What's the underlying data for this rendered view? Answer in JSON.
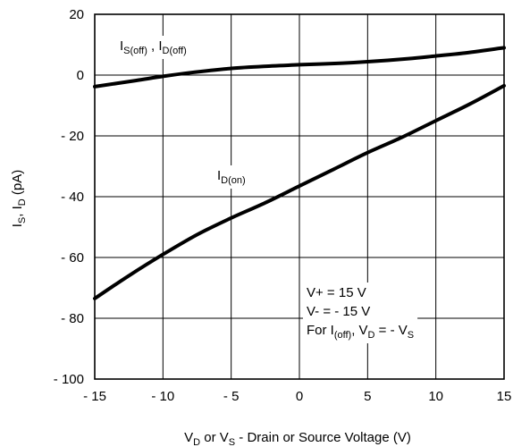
{
  "chart_data": {
    "type": "line",
    "xlabel": {
      "main": "V",
      "s1": "D",
      "mid": " or V",
      "s2": "S",
      "rest": " - Drain or Source Voltage (V)"
    },
    "ylabel": {
      "p1": "I",
      "s1": "S",
      "p2": ", I",
      "s2": "D",
      "p3": " (pA)"
    },
    "xlim": [
      -15,
      15
    ],
    "ylim": [
      -100,
      20
    ],
    "xticks": [
      -15,
      -10,
      -5,
      0,
      5,
      10,
      15
    ],
    "xtick_labels": [
      "- 15",
      "- 10",
      "- 5",
      "0",
      "5",
      "10",
      "15"
    ],
    "yticks": [
      20,
      0,
      -20,
      -40,
      -60,
      -80,
      -100
    ],
    "ytick_labels": [
      "20",
      "0",
      "- 20",
      "- 40",
      "- 60",
      "- 80",
      "- 100"
    ],
    "grid": true,
    "series": [
      {
        "label_main": "I",
        "label_sub": "S(off)",
        "label_mid": " , I",
        "label_sub2": "D(off)",
        "x": [
          -15,
          -12,
          -10,
          -8,
          -5,
          -2,
          0,
          3,
          5,
          8,
          10,
          12,
          15
        ],
        "y": [
          -3.8,
          -1.8,
          -0.4,
          0.8,
          2.2,
          3.0,
          3.4,
          3.9,
          4.4,
          5.4,
          6.3,
          7.2,
          9.0
        ]
      },
      {
        "label_main": "I",
        "label_sub": "D(on)",
        "x": [
          -15,
          -12.5,
          -10,
          -7.5,
          -5,
          -2.5,
          0,
          2.5,
          5,
          7.5,
          10,
          12.5,
          15
        ],
        "y": [
          -73.5,
          -66.0,
          -59.0,
          -52.5,
          -47.0,
          -42.0,
          -36.5,
          -31.0,
          -25.5,
          -20.5,
          -15.0,
          -9.5,
          -3.5
        ]
      }
    ],
    "annotations": {
      "line1": "V+ = 15 V",
      "line2": "V- = - 15 V",
      "line3": {
        "p1": "For I",
        "s1": "(off)",
        "p2": ", V",
        "s2": "D",
        "p3": " = - V",
        "s3": "S"
      }
    }
  }
}
